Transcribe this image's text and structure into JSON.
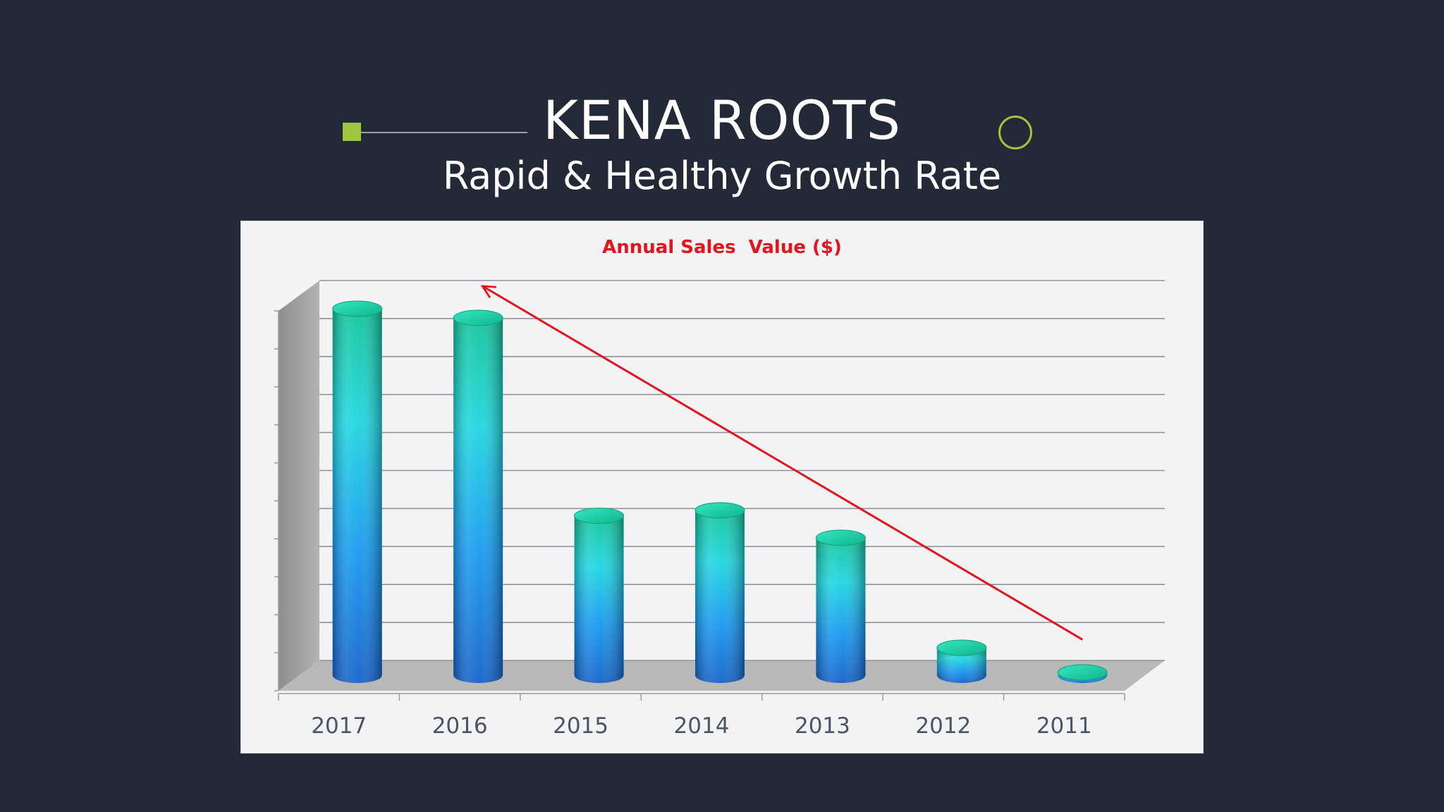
{
  "slide": {
    "title": "KENA ROOTS",
    "subtitle": "Rapid & Healthy Growth Rate",
    "accent_color": "#9cc63c",
    "background_color": "#242937"
  },
  "chart_data": {
    "type": "bar",
    "style": "3d-cylinder",
    "title": "Annual Sales  Value ($)",
    "title_color": "#e3141b",
    "xlabel": "",
    "ylabel": "",
    "categories": [
      "2017",
      "2016",
      "2015",
      "2014",
      "2013",
      "2012",
      "2011"
    ],
    "values": [
      100,
      97.5,
      43.5,
      45,
      37.5,
      7.5,
      0.5
    ],
    "ylim": [
      0,
      100
    ],
    "y_gridlines": 10,
    "y_tick_labels_shown": false,
    "grid": true,
    "legend": "none",
    "bar_gradient": [
      "#1462c9",
      "#1aa8f0",
      "#1fd8d8",
      "#17c8a0"
    ],
    "trend_arrow": {
      "color": "#e3141b",
      "from_category": "2011",
      "to_category": "2016",
      "direction": "rising toward recent years"
    }
  }
}
